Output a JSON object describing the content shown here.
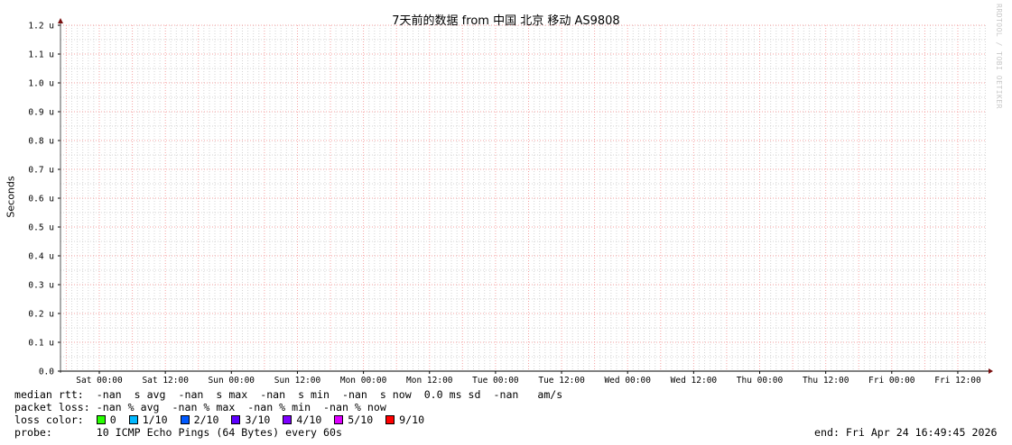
{
  "chart_data": {
    "type": "line",
    "title": "7天前的数据 from  中国 北京 移动 AS9808",
    "ylabel": "Seconds",
    "ylim": [
      0,
      1.2
    ],
    "y_ticks": [
      "0.0",
      "0.1 u",
      "0.2 u",
      "0.3 u",
      "0.4 u",
      "0.5 u",
      "0.6 u",
      "0.7 u",
      "0.8 u",
      "0.9 u",
      "1.0 u",
      "1.1 u",
      "1.2 u"
    ],
    "x_ticks": [
      "Sat 00:00",
      "Sat 12:00",
      "Sun 00:00",
      "Sun 12:00",
      "Mon 00:00",
      "Mon 12:00",
      "Tue 00:00",
      "Tue 12:00",
      "Wed 00:00",
      "Wed 12:00",
      "Thu 00:00",
      "Thu 12:00",
      "Fri 00:00",
      "Fri 12:00"
    ],
    "grid": true,
    "series": [],
    "watermark": "RRDTOOL / TOBI OETIKER"
  },
  "legend": {
    "median_rtt": "median rtt:  -nan  s avg  -nan  s max  -nan  s min  -nan  s now  0.0 ms sd  -nan   am/s",
    "packet_loss": "packet loss: -nan % avg  -nan % max  -nan % min  -nan % now",
    "loss_color_label": "loss color:  ",
    "loss_colors": [
      {
        "label": "0",
        "color": "#26ff00"
      },
      {
        "label": "1/10",
        "color": "#00b8ff"
      },
      {
        "label": "2/10",
        "color": "#0059ff"
      },
      {
        "label": "3/10",
        "color": "#5e00ff"
      },
      {
        "label": "4/10",
        "color": "#7e00ff"
      },
      {
        "label": "5/10",
        "color": "#dd00ff"
      },
      {
        "label": "9/10",
        "color": "#ff0000"
      }
    ],
    "probe": "probe:       10 ICMP Echo Pings (64 Bytes) every 60s",
    "end": "end: Fri Apr 24 16:49:45 2026"
  }
}
